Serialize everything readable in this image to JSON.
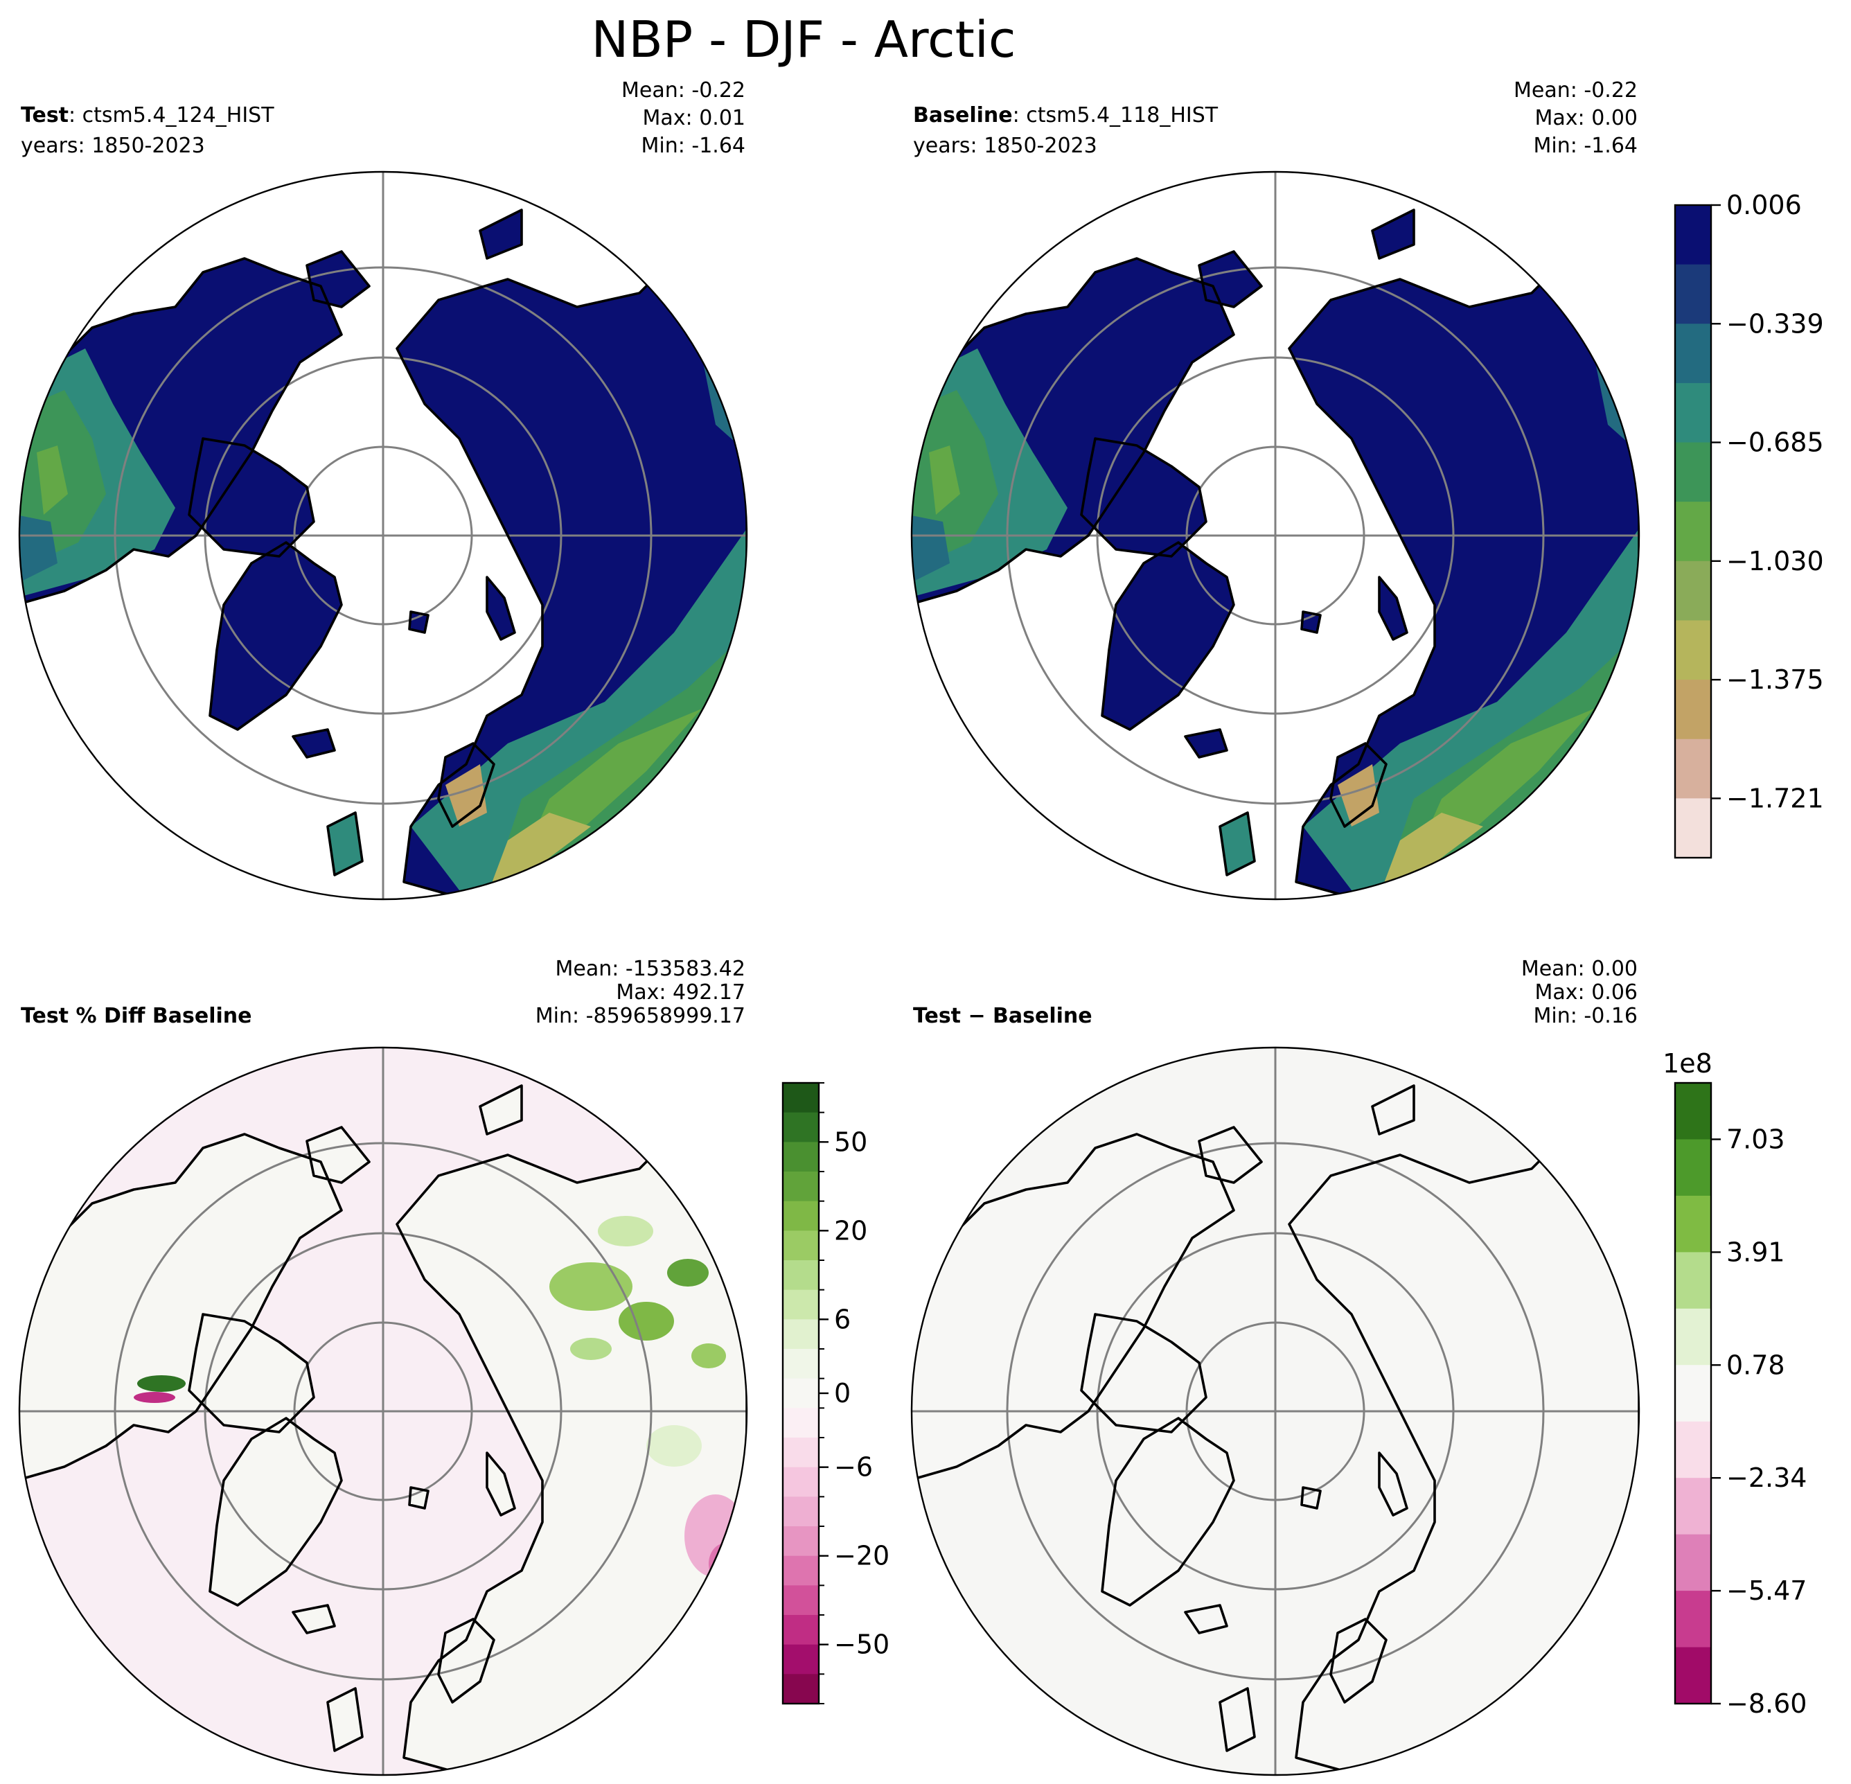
{
  "figure": {
    "title": "NBP - DJF - Arctic"
  },
  "panels": [
    {
      "id": "test",
      "label_bold": "Test",
      "label_rest": ": ctsm5.4_124_HIST",
      "years": "years: 1850-2023",
      "stats": {
        "mean": "Mean: -0.22",
        "max": "Max:  0.01",
        "min": "Min: -1.64"
      }
    },
    {
      "id": "baseline",
      "label_bold": "Baseline",
      "label_rest": ": ctsm5.4_118_HIST",
      "years": "years: 1850-2023",
      "stats": {
        "mean": "Mean: -0.22",
        "max": "Max:  0.00",
        "min": "Min: -1.64"
      }
    },
    {
      "id": "pctdiff",
      "label_bold": "Test % Diff Baseline",
      "label_rest": "",
      "years": "",
      "stats": {
        "mean": "Mean: -153583.42",
        "max": "Max: 492.17",
        "min": "Min: -859658999.17"
      }
    },
    {
      "id": "diff",
      "label_bold": "Test − Baseline",
      "label_rest": "",
      "years": "",
      "stats": {
        "mean": "Mean:  0.00",
        "max": "Max:  0.06",
        "min": "Min: -0.16"
      }
    }
  ],
  "colorbars": {
    "top": {
      "colors": [
        "#0a0f72",
        "#1b3a7a",
        "#236b80",
        "#2f8b7c",
        "#3d9558",
        "#63a847",
        "#8aab59",
        "#b5b55c",
        "#c2a366",
        "#d7b09d",
        "#f3e0dc"
      ],
      "ticks": [
        "0.006",
        "−0.339",
        "−0.685",
        "−1.030",
        "−1.375",
        "−1.721"
      ]
    },
    "pctdiff": {
      "colors": [
        "#1e5818",
        "#2f7424",
        "#4a9030",
        "#61a33a",
        "#7fb846",
        "#9bcb64",
        "#b4dc8c",
        "#cce8ac",
        "#e1f1cf",
        "#f0f6e8",
        "#f7f7f3",
        "#fbeff4",
        "#f9dcea",
        "#f5c6df",
        "#eeafd2",
        "#e795c2",
        "#de74af",
        "#d2519a",
        "#c02d84",
        "#a30e6c",
        "#87064f"
      ],
      "ticks": [
        "50",
        "20",
        "6",
        "0",
        "−6",
        "−20",
        "−50"
      ],
      "minor_tick_count": 21
    },
    "diff": {
      "exponent": "1e8",
      "colors": [
        "#2e7419",
        "#4d9a2b",
        "#7fbb43",
        "#b4dc8c",
        "#e3f2d3",
        "#f7f7f5",
        "#f9dde9",
        "#efb2d3",
        "#de80b8",
        "#c83c8f",
        "#a10b68"
      ],
      "ticks": [
        "7.03",
        "3.91",
        "0.78",
        "−2.34",
        "−5.47",
        "−8.60"
      ]
    }
  }
}
